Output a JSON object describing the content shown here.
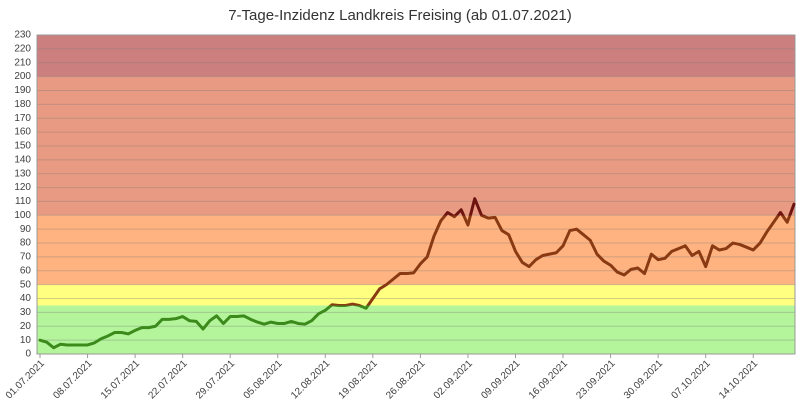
{
  "chart_data": {
    "type": "line",
    "title": "7-Tage-Inzidenz Landkreis Freising (ab 01.07.2021)",
    "x": [
      "01.07.2021",
      "02.07.2021",
      "03.07.2021",
      "04.07.2021",
      "05.07.2021",
      "06.07.2021",
      "07.07.2021",
      "08.07.2021",
      "09.07.2021",
      "10.07.2021",
      "11.07.2021",
      "12.07.2021",
      "13.07.2021",
      "14.07.2021",
      "15.07.2021",
      "16.07.2021",
      "17.07.2021",
      "18.07.2021",
      "19.07.2021",
      "20.07.2021",
      "21.07.2021",
      "22.07.2021",
      "23.07.2021",
      "24.07.2021",
      "25.07.2021",
      "26.07.2021",
      "27.07.2021",
      "28.07.2021",
      "29.07.2021",
      "30.07.2021",
      "31.07.2021",
      "01.08.2021",
      "02.08.2021",
      "03.08.2021",
      "04.08.2021",
      "05.08.2021",
      "06.08.2021",
      "07.08.2021",
      "08.08.2021",
      "09.08.2021",
      "10.08.2021",
      "11.08.2021",
      "12.08.2021",
      "13.08.2021",
      "14.08.2021",
      "15.08.2021",
      "16.08.2021",
      "17.08.2021",
      "18.08.2021",
      "19.08.2021",
      "20.08.2021",
      "21.08.2021",
      "22.08.2021",
      "23.08.2021",
      "24.08.2021",
      "25.08.2021",
      "26.08.2021",
      "27.08.2021",
      "28.08.2021",
      "29.08.2021",
      "30.08.2021",
      "31.08.2021",
      "01.09.2021",
      "02.09.2021",
      "03.09.2021",
      "04.09.2021",
      "05.09.2021",
      "06.09.2021",
      "07.09.2021",
      "08.09.2021",
      "09.09.2021",
      "10.09.2021",
      "11.09.2021",
      "12.09.2021",
      "13.09.2021",
      "14.09.2021",
      "15.09.2021",
      "16.09.2021",
      "17.09.2021",
      "18.09.2021",
      "19.09.2021",
      "20.09.2021",
      "21.09.2021",
      "22.09.2021",
      "23.09.2021",
      "24.09.2021",
      "25.09.2021",
      "26.09.2021",
      "27.09.2021",
      "28.09.2021",
      "29.09.2021",
      "30.09.2021",
      "01.10.2021",
      "02.10.2021",
      "03.10.2021",
      "04.10.2021",
      "05.10.2021",
      "06.10.2021",
      "07.10.2021",
      "08.10.2021",
      "09.10.2021",
      "10.10.2021",
      "11.10.2021",
      "12.10.2021",
      "13.10.2021",
      "14.10.2021",
      "15.10.2021",
      "16.10.2021",
      "17.10.2021",
      "18.10.2021",
      "19.10.2021",
      "20.10.2021"
    ],
    "values": [
      10,
      8.5,
      4.5,
      7,
      6.5,
      6.5,
      6.5,
      6.5,
      8,
      11,
      13,
      15.5,
      15.5,
      14.5,
      17,
      19,
      19,
      20,
      25,
      25,
      25.5,
      27,
      24,
      23.5,
      18,
      24,
      27.5,
      22,
      27,
      27,
      27.5,
      25,
      23,
      21.5,
      23,
      22,
      22,
      23.5,
      22,
      21.5,
      24,
      29,
      31.5,
      35.5,
      35,
      35,
      36,
      35,
      33,
      40,
      47,
      50,
      54,
      58,
      58,
      58.5,
      65,
      70,
      85,
      96,
      102,
      99,
      104,
      93,
      112,
      100,
      98,
      98.5,
      89,
      86,
      74,
      66,
      63,
      68,
      71,
      72,
      73,
      78,
      89,
      90,
      86,
      82,
      72,
      67,
      64,
      59,
      57,
      61,
      62,
      58,
      72,
      68,
      69,
      74,
      76,
      78,
      71,
      74,
      63,
      78,
      75,
      76,
      80,
      79,
      77,
      75,
      80,
      88,
      95,
      102,
      95,
      108
    ],
    "xticks": [
      "01.07.2021",
      "08.07.2021",
      "15.07.2021",
      "22.07.2021",
      "29.07.2021",
      "05.08.2021",
      "12.08.2021",
      "19.08.2021",
      "26.08.2021",
      "02.09.2021",
      "09.09.2021",
      "16.09.2021",
      "23.09.2021",
      "30.09.2021",
      "07.10.2021",
      "14.10.2021"
    ],
    "ylim": [
      0,
      230
    ],
    "yticks": [
      0,
      10,
      20,
      30,
      40,
      50,
      60,
      70,
      80,
      90,
      100,
      110,
      120,
      130,
      140,
      150,
      160,
      170,
      180,
      190,
      200,
      210,
      220,
      230
    ],
    "grid": true,
    "bands": [
      {
        "from": 0,
        "to": 35,
        "color": "#b4f59c",
        "line_color": "#3d8a1c"
      },
      {
        "from": 35,
        "to": 50,
        "color": "#ffff80",
        "line_color": "#8a3a12"
      },
      {
        "from": 50,
        "to": 100,
        "color": "#ffb381",
        "line_color": "#8a3a12"
      },
      {
        "from": 100,
        "to": 200,
        "color": "#e89a82",
        "line_color": "#6e1410"
      },
      {
        "from": 200,
        "to": 230,
        "color": "#cc7f7f",
        "line_color": "#6e1410"
      }
    ]
  }
}
